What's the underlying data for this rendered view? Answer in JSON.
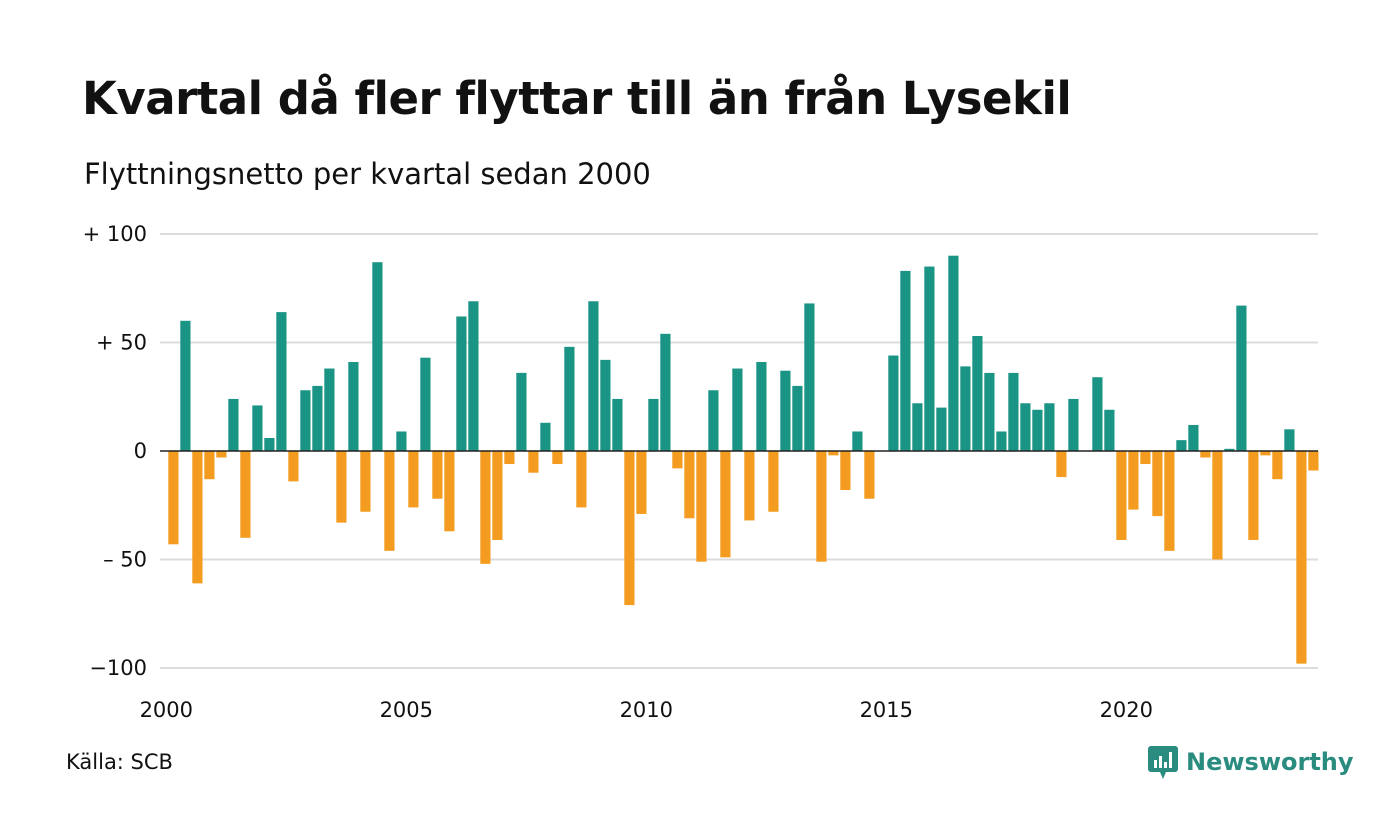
{
  "title": "Kvartal då fler flyttar till än från Lysekil",
  "subtitle": "Flyttningsnetto per kvartal sedan 2000",
  "source": "Källa: SCB",
  "logo_text": "Newsworthy",
  "colors": {
    "positive": "#1a9484",
    "negative": "#f39c1f",
    "grid": "#dcdcdc",
    "logo": "#2a8c7f"
  },
  "chart_data": {
    "type": "bar",
    "ylim": [
      -100,
      100
    ],
    "y_ticks": [
      {
        "value": 100,
        "label": "+ 100"
      },
      {
        "value": 50,
        "label": "+  50"
      },
      {
        "value": 0,
        "label": "0"
      },
      {
        "value": -50,
        "label": "– 50"
      },
      {
        "value": -100,
        "label": "−100"
      }
    ],
    "x_ticks": [
      "2000",
      "2005",
      "2010",
      "2015",
      "2020"
    ],
    "start_year": 2000,
    "values": [
      -43,
      60,
      -61,
      -13,
      -3,
      24,
      -40,
      21,
      6,
      64,
      -14,
      28,
      30,
      38,
      -33,
      41,
      -28,
      87,
      -46,
      9,
      -26,
      43,
      -22,
      -37,
      62,
      69,
      -52,
      -41,
      -6,
      36,
      -10,
      13,
      -6,
      48,
      -26,
      69,
      42,
      24,
      -71,
      -29,
      24,
      54,
      -8,
      -31,
      -51,
      28,
      -49,
      38,
      -32,
      41,
      -28,
      37,
      30,
      68,
      -51,
      -2,
      -18,
      9,
      -22,
      0,
      44,
      83,
      22,
      85,
      20,
      90,
      39,
      53,
      36,
      9,
      36,
      22,
      19,
      22,
      -12,
      24,
      0,
      34,
      19,
      -41,
      -27,
      -6,
      -30,
      -46,
      5,
      12,
      -3,
      -50,
      1,
      67,
      -41,
      -2,
      -13,
      10,
      -98,
      -9
    ]
  }
}
